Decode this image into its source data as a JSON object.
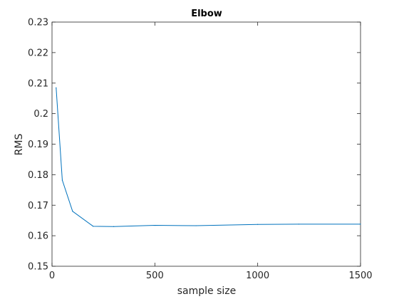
{
  "chart_data": {
    "type": "line",
    "title": "Elbow",
    "xlabel": "sample size",
    "ylabel": "RMS",
    "xlim": [
      0,
      1500
    ],
    "ylim": [
      0.15,
      0.23
    ],
    "xticks": [
      0,
      500,
      1000,
      1500
    ],
    "yticks": [
      0.15,
      0.16,
      0.17,
      0.18,
      0.19,
      0.2,
      0.21,
      0.22,
      0.23
    ],
    "grid": false,
    "series": [
      {
        "color": "#0072bd",
        "x": [
          20,
          50,
          100,
          200,
          300,
          500,
          700,
          1000,
          1200,
          1500
        ],
        "y": [
          0.2085,
          0.1782,
          0.168,
          0.1631,
          0.163,
          0.1634,
          0.1633,
          0.1637,
          0.1638,
          0.1638
        ]
      }
    ]
  }
}
